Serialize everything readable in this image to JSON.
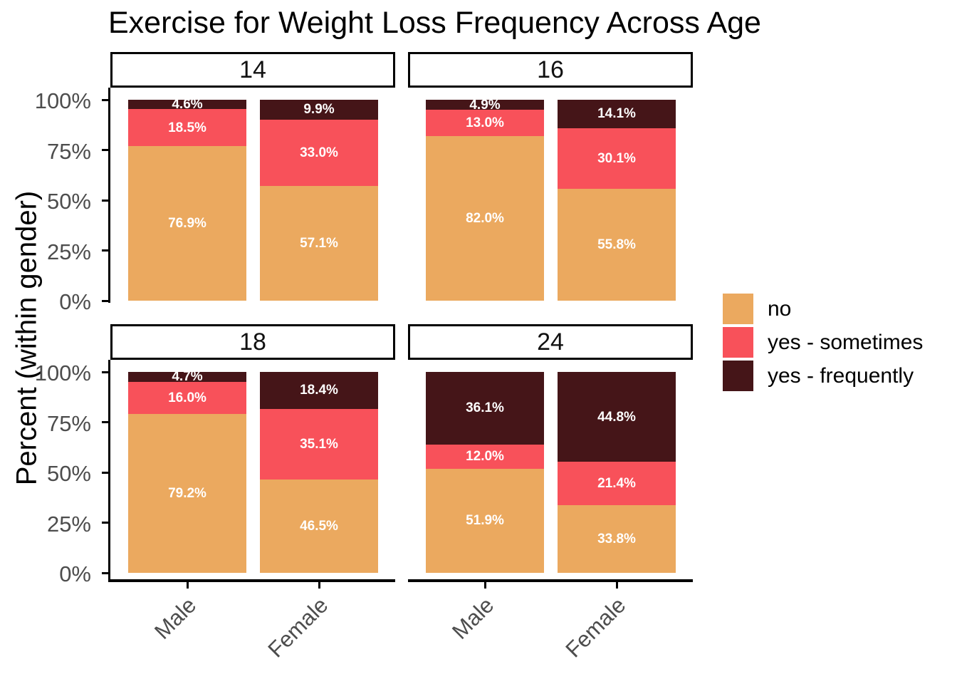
{
  "title": "Exercise for Weight Loss Frequency Across Age",
  "y_axis": {
    "label": "Percent (within gender)",
    "ticks": [
      {
        "label": "0%",
        "value": 0
      },
      {
        "label": "25%",
        "value": 25
      },
      {
        "label": "50%",
        "value": 50
      },
      {
        "label": "75%",
        "value": 75
      },
      {
        "label": "100%",
        "value": 100
      }
    ]
  },
  "legend": {
    "items": [
      {
        "label": "no",
        "color": "#EBA95F"
      },
      {
        "label": "yes - sometimes",
        "color": "#F8515A"
      },
      {
        "label": "yes - frequently",
        "color": "#451518"
      }
    ]
  },
  "chart_data": {
    "type": "bar",
    "variant": "stacked-percent-faceted",
    "title": "Exercise for Weight Loss Frequency Across Age",
    "ylabel": "Percent (within gender)",
    "ylim": [
      0,
      100
    ],
    "grid": false,
    "legend_position": "right",
    "facet_by": "age",
    "categories": [
      "Male",
      "Female"
    ],
    "stack_levels": [
      "no",
      "yes - sometimes",
      "yes - frequently"
    ],
    "colors": {
      "no": "#EBA95F",
      "yes - sometimes": "#F8515A",
      "yes - frequently": "#451518"
    },
    "label_suffix": "%",
    "facets": [
      {
        "label": "14",
        "values": {
          "Male": {
            "no": 76.9,
            "yes - sometimes": 18.5,
            "yes - frequently": 4.6
          },
          "Female": {
            "no": 57.1,
            "yes - sometimes": 33.0,
            "yes - frequently": 9.9
          }
        }
      },
      {
        "label": "16",
        "values": {
          "Male": {
            "no": 82.0,
            "yes - sometimes": 13.0,
            "yes - frequently": 4.9
          },
          "Female": {
            "no": 55.8,
            "yes - sometimes": 30.1,
            "yes - frequently": 14.1
          }
        }
      },
      {
        "label": "18",
        "values": {
          "Male": {
            "no": 79.2,
            "yes - sometimes": 16.0,
            "yes - frequently": 4.7
          },
          "Female": {
            "no": 46.5,
            "yes - sometimes": 35.1,
            "yes - frequently": 18.4
          }
        }
      },
      {
        "label": "24",
        "values": {
          "Male": {
            "no": 51.9,
            "yes - sometimes": 12.0,
            "yes - frequently": 36.1
          },
          "Female": {
            "no": 33.8,
            "yes - sometimes": 21.4,
            "yes - frequently": 44.8
          }
        }
      }
    ]
  }
}
